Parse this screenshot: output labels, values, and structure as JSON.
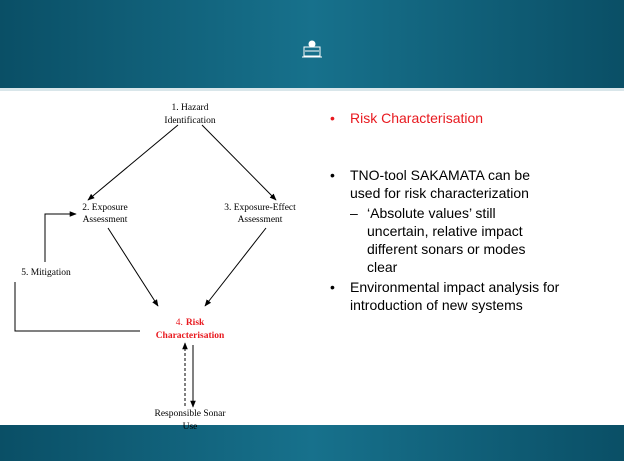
{
  "diagram": {
    "nodes": [
      {
        "lines": [
          "1. Hazard",
          "Identification"
        ]
      },
      {
        "lines": [
          "2. Exposure",
          "Assessment"
        ]
      },
      {
        "lines": [
          "3. Exposure-Effect",
          "Assessment"
        ]
      },
      {
        "number": "4.",
        "lines": [
          "Risk",
          "Characterisation"
        ]
      },
      {
        "lines": [
          "5. Mitigation"
        ]
      },
      {
        "lines": [
          "Responsible Sonar",
          "Use"
        ]
      }
    ]
  },
  "bullets": [
    {
      "lines": [
        "Risk Characterisation"
      ]
    },
    {
      "lines": [
        "TNO-tool SAKAMATA can be",
        "used for risk characterization"
      ],
      "sub": [
        {
          "lines": [
            "‘Absolute values’ still",
            "uncertain, relative impact",
            "different sonars or modes",
            "clear"
          ]
        }
      ]
    },
    {
      "lines": [
        "Environmental impact analysis for",
        "introduction of new systems"
      ]
    }
  ]
}
